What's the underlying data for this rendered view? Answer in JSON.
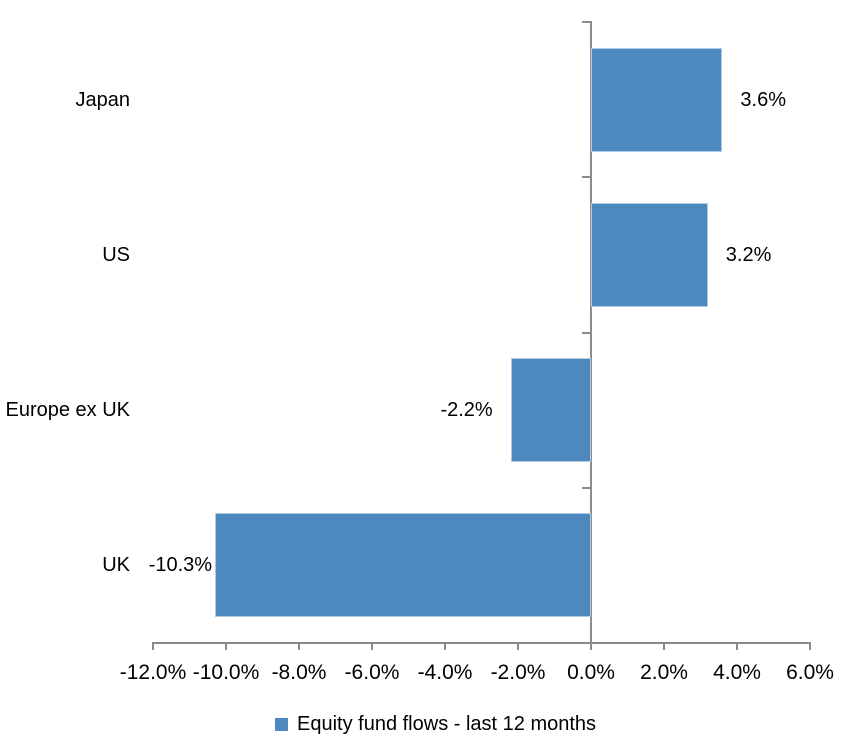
{
  "chart_data": {
    "type": "bar",
    "orientation": "horizontal",
    "title": "",
    "categories": [
      "Japan",
      "US",
      "Europe ex UK",
      "UK"
    ],
    "values": [
      3.6,
      3.2,
      -2.2,
      -10.3
    ],
    "value_labels": [
      "3.6%",
      "3.2%",
      "-2.2%",
      "-10.3%"
    ],
    "series": [
      {
        "name": "Equity fund flows - last 12 months",
        "values": [
          3.6,
          3.2,
          -2.2,
          -10.3
        ]
      }
    ],
    "xlim": [
      -12,
      6
    ],
    "x_tick_values": [
      -12,
      -10,
      -8,
      -6,
      -4,
      -2,
      0,
      2,
      4,
      6
    ],
    "x_tick_labels": [
      "-12.0%",
      "-10.0%",
      "-8.0%",
      "-6.0%",
      "-4.0%",
      "-2.0%",
      "0.0%",
      "2.0%",
      "4.0%",
      "6.0%"
    ],
    "grid": false,
    "legend": "Equity fund flows - last 12 months",
    "legend_position": "bottom",
    "bar_color": "#4D89BF",
    "axis_color": "#8C8C8C",
    "text_color": "#000000"
  }
}
